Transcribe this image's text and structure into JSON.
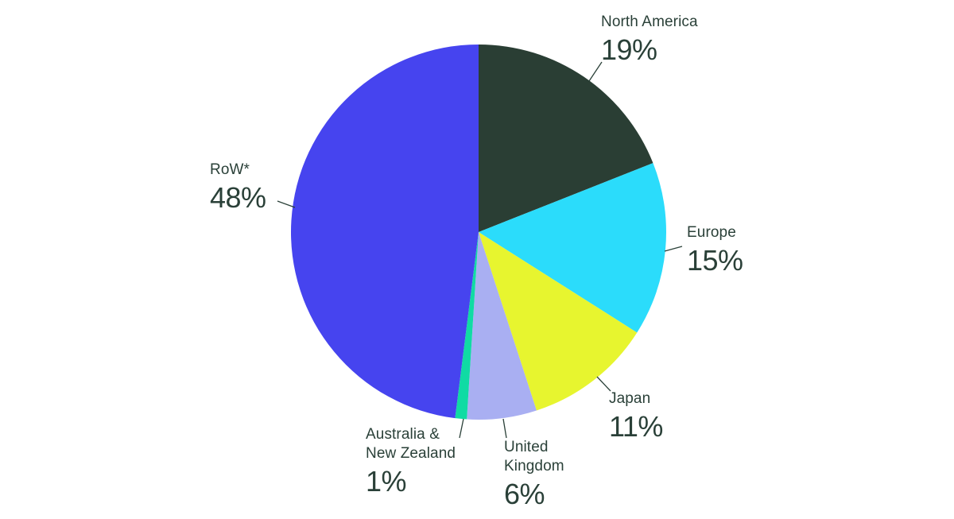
{
  "chart_data": {
    "type": "pie",
    "title": "",
    "categories": [
      "North America",
      "Europe",
      "Japan",
      "United Kingdom",
      "Australia & New Zealand",
      "RoW*"
    ],
    "values": [
      19,
      15,
      11,
      6,
      1,
      48
    ],
    "value_labels": [
      "19%",
      "15%",
      "11%",
      "6%",
      "1%",
      "48%"
    ],
    "unit": "%",
    "colors": [
      "#2A3E34",
      "#2BDCFB",
      "#E7F52F",
      "#A9AFF2",
      "#10DBA4",
      "#4644EF"
    ],
    "start_angle": "12-oclock",
    "direction": "clockwise",
    "legend_position": "callout-labels",
    "label_color": "#2A4038",
    "leader_line_color": "#2A4038",
    "background_color": "#FFFFFF"
  }
}
